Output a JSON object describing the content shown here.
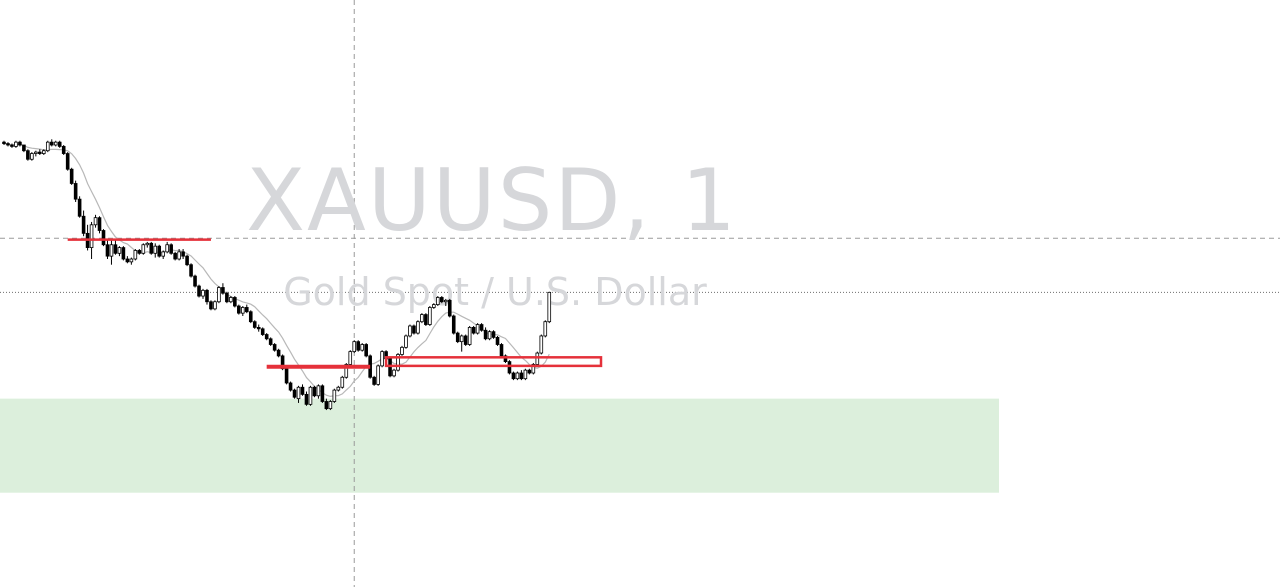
{
  "watermark": {
    "symbol": "XAUUSD, 1",
    "description": "Gold Spot / U.S. Dollar"
  },
  "colors": {
    "background": "#ffffff",
    "candle": "#000000",
    "moving_average": "#b8b8b8",
    "crosshair": "#9a9a9a",
    "price_line": "#6e6e6e",
    "zone_fill": "#dcefdc",
    "level_line": "#e5313a",
    "watermark": "#d6d7da"
  },
  "chart_data": {
    "type": "candlestick",
    "symbol": "XAUUSD",
    "timeframe": "1",
    "price_scale": [
      0,
      100
    ],
    "price_line_value": 48.3,
    "crosshair": {
      "bar": 88,
      "price": 67.3
    },
    "moving_average": {
      "type": "SMA"
    },
    "candles": [
      [
        101,
        101.5,
        100,
        100.5
      ],
      [
        100.5,
        101,
        99.5,
        100
      ],
      [
        100,
        100.5,
        99,
        99.5
      ],
      [
        99.5,
        101.5,
        99,
        101
      ],
      [
        101,
        101.5,
        99.5,
        100
      ],
      [
        100,
        100,
        97.5,
        98
      ],
      [
        98,
        98.5,
        94.5,
        95
      ],
      [
        95,
        97.5,
        94.5,
        97
      ],
      [
        97,
        98,
        96,
        97.5
      ],
      [
        97.5,
        98.5,
        96.5,
        97
      ],
      [
        97,
        98.5,
        96.5,
        98
      ],
      [
        98,
        101.5,
        97.5,
        101
      ],
      [
        101,
        102,
        99.5,
        100
      ],
      [
        100,
        101.5,
        99.5,
        101
      ],
      [
        101,
        101.5,
        99,
        99.5
      ],
      [
        99.5,
        100,
        96.5,
        97
      ],
      [
        97,
        97.5,
        91,
        91.5
      ],
      [
        91.5,
        92,
        86,
        86.5
      ],
      [
        86.5,
        87.5,
        80,
        81
      ],
      [
        81,
        82,
        74.5,
        75
      ],
      [
        75,
        77,
        68,
        69
      ],
      [
        69,
        72,
        63,
        64
      ],
      [
        64,
        73,
        60,
        72
      ],
      [
        72,
        75.5,
        71,
        74.5
      ],
      [
        74.5,
        75,
        69,
        70
      ],
      [
        70,
        70.5,
        64.5,
        65
      ],
      [
        65,
        66.5,
        60,
        61
      ],
      [
        61,
        66.5,
        58,
        65
      ],
      [
        65,
        66.5,
        61.5,
        62
      ],
      [
        62,
        64.5,
        61,
        64
      ],
      [
        64,
        64.5,
        59.5,
        60
      ],
      [
        60,
        61,
        58.5,
        59
      ],
      [
        59,
        60.5,
        58,
        60
      ],
      [
        60,
        63.5,
        59.5,
        63
      ],
      [
        63,
        63.5,
        61.5,
        62
      ],
      [
        62,
        65.5,
        61.5,
        65
      ],
      [
        65,
        66,
        64,
        65.5
      ],
      [
        65.5,
        66,
        61.5,
        62
      ],
      [
        62,
        65.5,
        60.5,
        64.5
      ],
      [
        64.5,
        65,
        60.5,
        61
      ],
      [
        61,
        63,
        60,
        62.5
      ],
      [
        62.5,
        66,
        62,
        65
      ],
      [
        65,
        65.5,
        61.5,
        62
      ],
      [
        62,
        62.5,
        59.5,
        60
      ],
      [
        60,
        63.5,
        59.5,
        62.5
      ],
      [
        62.5,
        63.5,
        60,
        61
      ],
      [
        61,
        61.5,
        57.5,
        58
      ],
      [
        58,
        58.5,
        53.5,
        54
      ],
      [
        54,
        54.5,
        50,
        50.5
      ],
      [
        50.5,
        51,
        46.5,
        47
      ],
      [
        47,
        49.5,
        46,
        49
      ],
      [
        49,
        49.5,
        44,
        45
      ],
      [
        45,
        45.5,
        42,
        42.5
      ],
      [
        42.5,
        45.5,
        42,
        45
      ],
      [
        45,
        50.5,
        44.5,
        50
      ],
      [
        50,
        51.5,
        47.5,
        48
      ],
      [
        48,
        48.5,
        44.5,
        45
      ],
      [
        45,
        47,
        44.5,
        46.5
      ],
      [
        46.5,
        47,
        43,
        43.5
      ],
      [
        43.5,
        44,
        40.5,
        41
      ],
      [
        41,
        43.5,
        40,
        43
      ],
      [
        43,
        44,
        41,
        41.5
      ],
      [
        41.5,
        42,
        37.5,
        38
      ],
      [
        38,
        38.5,
        35.5,
        36
      ],
      [
        36,
        37,
        34.5,
        35.5
      ],
      [
        35.5,
        36,
        33,
        33.5
      ],
      [
        33.5,
        34,
        31.5,
        32
      ],
      [
        32,
        32.5,
        29.5,
        30
      ],
      [
        30,
        30.5,
        27.5,
        28
      ],
      [
        28,
        28.5,
        25.5,
        26
      ],
      [
        26,
        26.5,
        21,
        21.5
      ],
      [
        21.5,
        22,
        16,
        16.5
      ],
      [
        16.5,
        17,
        13.5,
        14
      ],
      [
        14,
        14.5,
        11,
        11.5
      ],
      [
        11,
        15.5,
        9.5,
        15
      ],
      [
        15,
        16,
        12,
        12.5
      ],
      [
        12.5,
        13.5,
        8.5,
        9
      ],
      [
        9,
        15.5,
        8.5,
        15
      ],
      [
        15,
        15.5,
        11.5,
        12
      ],
      [
        12,
        16,
        11,
        15.5
      ],
      [
        15.5,
        16,
        9.5,
        10
      ],
      [
        10,
        11,
        7,
        7.5
      ],
      [
        7.5,
        10.5,
        7,
        10
      ],
      [
        10,
        14.5,
        9.5,
        14
      ],
      [
        14,
        15.5,
        13.5,
        15
      ],
      [
        15,
        19,
        14.5,
        18.5
      ],
      [
        18.5,
        23.5,
        18,
        23
      ],
      [
        23,
        28,
        22.5,
        27.5
      ],
      [
        27.5,
        31.5,
        27,
        31
      ],
      [
        31,
        31.5,
        27.5,
        28
      ],
      [
        28,
        30.5,
        27.5,
        30
      ],
      [
        30,
        30.5,
        25.5,
        26
      ],
      [
        26,
        26.5,
        18,
        18.5
      ],
      [
        18.5,
        19,
        15.5,
        16
      ],
      [
        16,
        23,
        15.5,
        22.5
      ],
      [
        22.5,
        28,
        22,
        27.5
      ],
      [
        27.5,
        28,
        24.5,
        25
      ],
      [
        25,
        25.5,
        18.5,
        19
      ],
      [
        19,
        21.5,
        18.5,
        21
      ],
      [
        21,
        27,
        20.5,
        26.5
      ],
      [
        26.5,
        29.5,
        26,
        29
      ],
      [
        29,
        33.5,
        28.5,
        33
      ],
      [
        33,
        37,
        32.5,
        36.5
      ],
      [
        36.5,
        37,
        33.5,
        34
      ],
      [
        34,
        38.5,
        33.5,
        38
      ],
      [
        38,
        41,
        37.5,
        40.5
      ],
      [
        40.5,
        41,
        36.5,
        37
      ],
      [
        37,
        43.5,
        36.5,
        43
      ],
      [
        43,
        44.5,
        42.5,
        44
      ],
      [
        44,
        47,
        43.5,
        46.5
      ],
      [
        46.5,
        47,
        44.5,
        45
      ],
      [
        45,
        46,
        43.5,
        45.5
      ],
      [
        45.5,
        46,
        39.5,
        40
      ],
      [
        40,
        40.5,
        33.5,
        34
      ],
      [
        34,
        34.5,
        30.5,
        31
      ],
      [
        31,
        33.5,
        27.5,
        33
      ],
      [
        33,
        33.5,
        29.5,
        30
      ],
      [
        30,
        36.5,
        29.5,
        36
      ],
      [
        36,
        36.5,
        33.5,
        34
      ],
      [
        34,
        37.5,
        33.5,
        37
      ],
      [
        37,
        37.5,
        34.5,
        35
      ],
      [
        35,
        36,
        31.5,
        32
      ],
      [
        32,
        35,
        31.5,
        34.5
      ],
      [
        34.5,
        35,
        32,
        32.5
      ],
      [
        32.5,
        33,
        29.5,
        30
      ],
      [
        30,
        30.5,
        25.5,
        26
      ],
      [
        26,
        26.5,
        23.5,
        24
      ],
      [
        24,
        24.5,
        19.5,
        20
      ],
      [
        20,
        20.5,
        17.5,
        18
      ],
      [
        18,
        20.5,
        17.5,
        20
      ],
      [
        20,
        21,
        17.5,
        18
      ],
      [
        18,
        21.5,
        17.5,
        21
      ],
      [
        21,
        21.5,
        19.5,
        20
      ],
      [
        20,
        23.5,
        19.5,
        23
      ],
      [
        23,
        27.5,
        22.5,
        27
      ],
      [
        27,
        33.5,
        26.5,
        33
      ],
      [
        33,
        38.5,
        32.5,
        38
      ],
      [
        38,
        48.5,
        37.5,
        48.3
      ]
    ],
    "annotations": [
      {
        "type": "horizontal-level",
        "from_bar": 16,
        "to_bar": 52,
        "price": 66.8
      },
      {
        "type": "horizontal-level",
        "from_bar": 66,
        "to_bar": 92,
        "price": 22.2
      },
      {
        "type": "rectangle",
        "from_bar": 96,
        "to_bar": 150,
        "price_high": 25.5,
        "price_low": 22.5
      },
      {
        "type": "rectangle-zone",
        "from_bar": -5,
        "to_bar": 250,
        "price_high": 11,
        "price_low": -22
      }
    ]
  }
}
